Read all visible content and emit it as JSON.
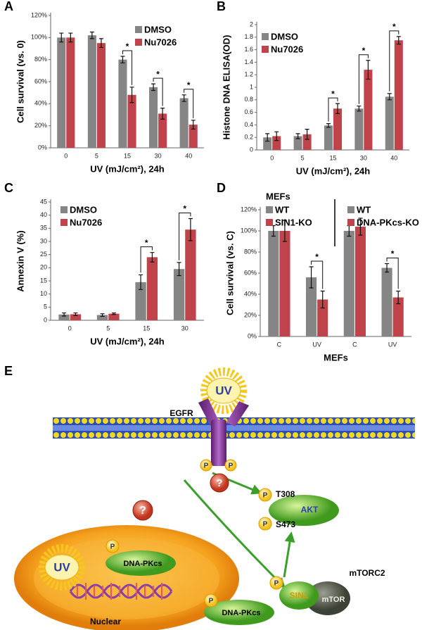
{
  "chart_data": [
    {
      "type": "bar",
      "panel": "A",
      "y_label": "Cell survival (vs. 0)",
      "x_label": "UV (mJ/cm²), 24h",
      "categories": [
        "0",
        "5",
        "15",
        "30",
        "40"
      ],
      "series": [
        {
          "name": "DMSO",
          "color": "#858585",
          "values": [
            100,
            102,
            80,
            55,
            45
          ],
          "errors": [
            4,
            3,
            3,
            3,
            3
          ]
        },
        {
          "name": "Nu7026",
          "color": "#c0424a",
          "values": [
            100,
            95,
            48,
            31,
            21
          ],
          "errors": [
            4,
            4,
            7,
            5,
            4
          ]
        }
      ],
      "significance": [
        null,
        null,
        "*",
        "*",
        "*"
      ],
      "ylim": [
        0,
        120
      ],
      "yticks": [
        {
          "value": 0,
          "label": "0%"
        },
        {
          "value": 20,
          "label": "20%"
        },
        {
          "value": 40,
          "label": "40%"
        },
        {
          "value": 60,
          "label": "60%"
        },
        {
          "value": 80,
          "label": "80%"
        },
        {
          "value": 100,
          "label": "100%"
        },
        {
          "value": 120,
          "label": "120%"
        }
      ],
      "legend": "upper right"
    },
    {
      "type": "bar",
      "panel": "B",
      "y_label": "Histone DNA ELISA(OD)",
      "x_label": "UV (mJ/cm²), 24h",
      "categories": [
        "0",
        "5",
        "15",
        "30",
        "40"
      ],
      "series": [
        {
          "name": "DMSO",
          "color": "#858585",
          "values": [
            0.2,
            0.22,
            0.39,
            0.66,
            0.85
          ],
          "errors": [
            0.06,
            0.04,
            0.03,
            0.04,
            0.05
          ]
        },
        {
          "name": "Nu7026",
          "color": "#c0424a",
          "values": [
            0.22,
            0.25,
            0.66,
            1.28,
            1.75
          ],
          "errors": [
            0.07,
            0.08,
            0.08,
            0.15,
            0.06
          ]
        }
      ],
      "significance": [
        null,
        null,
        "*",
        "*",
        "*"
      ],
      "ylim": [
        0,
        2
      ],
      "yticks": [
        0,
        0.2,
        0.4,
        0.6,
        0.8,
        1,
        1.2,
        1.4,
        1.6,
        1.8,
        2
      ],
      "legend": "upper left"
    },
    {
      "type": "bar",
      "panel": "C",
      "y_label": "Annexin V (%)",
      "x_label": "UV (mJ/cm²), 24h",
      "categories": [
        "0",
        "5",
        "15",
        "30"
      ],
      "series": [
        {
          "name": "DMSO",
          "color": "#858585",
          "values": [
            2.2,
            2,
            14.5,
            19.5
          ],
          "errors": [
            0.6,
            0.5,
            2.8,
            2.5
          ]
        },
        {
          "name": "Nu7026",
          "color": "#c0424a",
          "values": [
            2.3,
            2.5,
            24,
            34.5
          ],
          "errors": [
            0.5,
            0.3,
            1.8,
            4.2
          ]
        }
      ],
      "significance": [
        null,
        null,
        "*",
        "*"
      ],
      "ylim": [
        0,
        45
      ],
      "yticks": [
        0,
        5,
        10,
        15,
        20,
        25,
        30,
        35,
        40,
        45
      ],
      "legend": "upper left"
    },
    {
      "type": "bar",
      "panel": "D",
      "legend_title": "MEFs",
      "y_label": "Cell survival (vs. C)",
      "x_label": "MEFs",
      "categories": [
        "C",
        "UV",
        "C",
        "UV"
      ],
      "series": [
        {
          "name": "WT",
          "color": "#858585",
          "values": [
            100,
            56,
            null,
            null
          ],
          "errors": [
            5,
            10,
            null,
            null
          ]
        },
        {
          "name": "SIN1-KO",
          "color": "#c0424a",
          "values": [
            100,
            35,
            null,
            null
          ],
          "errors": [
            10,
            8,
            null,
            null
          ]
        },
        {
          "name": "WT",
          "color": "#858585",
          "values": [
            null,
            null,
            100,
            65
          ],
          "errors": [
            null,
            null,
            5,
            4
          ]
        },
        {
          "name": "DNA-PKcs-KO",
          "color": "#c0424a",
          "values": [
            null,
            null,
            104,
            37
          ],
          "errors": [
            null,
            null,
            8,
            6
          ]
        }
      ],
      "significance": [
        null,
        "*",
        null,
        "*"
      ],
      "ylim": [
        0,
        120
      ],
      "yticks": [
        {
          "value": 0,
          "label": "0%"
        },
        {
          "value": 20,
          "label": "20%"
        },
        {
          "value": 40,
          "label": "40%"
        },
        {
          "value": 60,
          "label": "60%"
        },
        {
          "value": 80,
          "label": "80%"
        },
        {
          "value": 100,
          "label": "100%"
        },
        {
          "value": 120,
          "label": "120%"
        }
      ],
      "legend": "upper left"
    }
  ],
  "diagram": {
    "panel": "E",
    "uv_top": "UV",
    "egfr": "EGFR",
    "egfr_p": [
      "P",
      "P"
    ],
    "unknown": [
      "?",
      "?"
    ],
    "akt": {
      "label": "AKT",
      "sites": [
        {
          "p": "P",
          "site": "T308"
        },
        {
          "p": "P",
          "site": "S473"
        }
      ]
    },
    "nucleus": {
      "label": "Nuclear",
      "uv": "UV",
      "p": "P",
      "kinase": "DNA-PKcs"
    },
    "mtorc2": {
      "label": "mTORC2",
      "p": "P",
      "sin1": "SIN1",
      "mtor": "mTOR"
    },
    "dnapk_cyto": {
      "p": "P",
      "kinase": "DNA-PKcs"
    }
  }
}
